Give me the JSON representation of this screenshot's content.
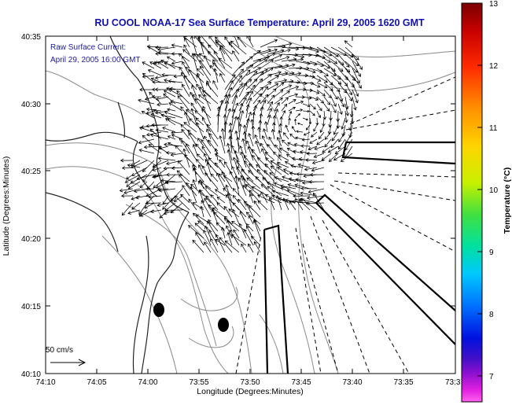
{
  "title": "RU COOL  NOAA-17  Sea Surface Temperature:  April 29, 2005 1620 GMT",
  "annotation": {
    "line1": "Raw Surface Current:",
    "line2": "April 29, 2005 16:00 GMT"
  },
  "scale": {
    "label": "50 cm/s"
  },
  "axes": {
    "xlabel": "Longitude (Degrees:Minutes)",
    "ylabel": "Latitude (Degrees:Minutes)",
    "xticks": [
      "74:10",
      "74:05",
      "74:00",
      "73:55",
      "73:50",
      "73:45",
      "73:40",
      "73:35",
      "73:3"
    ],
    "yticks": [
      "40:35",
      "40:30",
      "40:25",
      "40:20",
      "40:15",
      "40:10"
    ]
  },
  "colorbar": {
    "label": "Temperature (°C)",
    "ticks": [
      "13",
      "12",
      "11",
      "10",
      "9",
      "8",
      "7"
    ]
  },
  "colors": {
    "title": "#1010b0",
    "annotation": "#1a1aa8",
    "frame": "#000000",
    "contour": "#8a8a8a"
  },
  "map": {
    "features": [
      "coastline",
      "bathymetry-contours",
      "current-vectors",
      "shipping-lanes",
      "site-markers"
    ]
  }
}
